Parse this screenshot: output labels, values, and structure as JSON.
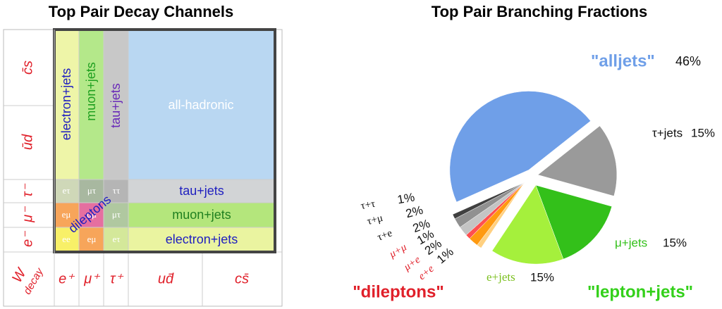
{
  "diagram": {
    "title": "Top Pair Decay Channels",
    "row_labels": [
      "c̄s",
      "ūd",
      "τ⁻",
      "μ⁻",
      "e⁻"
    ],
    "corner": [
      "W",
      "decay"
    ],
    "column_labels": [
      "e⁺",
      "μ⁺",
      "τ⁺",
      "ud̄",
      "cs̄"
    ],
    "column_channels": [
      "electron+jets",
      "muon+jets",
      "tau+jets",
      "all-hadronic"
    ],
    "row_channels": [
      "tau+jets",
      "muon+jets",
      "electron+jets"
    ],
    "cells": [
      [
        "eτ",
        "μτ",
        "ττ"
      ],
      [
        "eμ",
        "μμ",
        "μτ"
      ],
      [
        "ee",
        "eμ",
        "eτ"
      ]
    ],
    "dileptons": "dileptons"
  },
  "chart_data": {
    "type": "pie",
    "title": "Top Pair Branching Fractions",
    "categories": [
      "\"alljets\"",
      "τ+jets",
      "μ+jets",
      "e+jets",
      "e+e",
      "μ+e",
      "μ+μ",
      "τ+e",
      "τ+μ",
      "τ+τ"
    ],
    "values": [
      46,
      15,
      15,
      15,
      1,
      2,
      1,
      2,
      2,
      1
    ],
    "value_labels": [
      "46%",
      "15%",
      "15%",
      "15%",
      "1%",
      "2%",
      "1%",
      "2%",
      "2%",
      "1%"
    ],
    "colors": [
      "#6f9fe8",
      "#9a9a9a",
      "#33c01a",
      "#a5f03c",
      "#ffd080",
      "#ff9a10",
      "#ff5050",
      "#c4c4c4",
      "#909090",
      "#404040"
    ],
    "annotations": [
      "\"dileptons\"",
      "\"lepton+jets\""
    ]
  }
}
